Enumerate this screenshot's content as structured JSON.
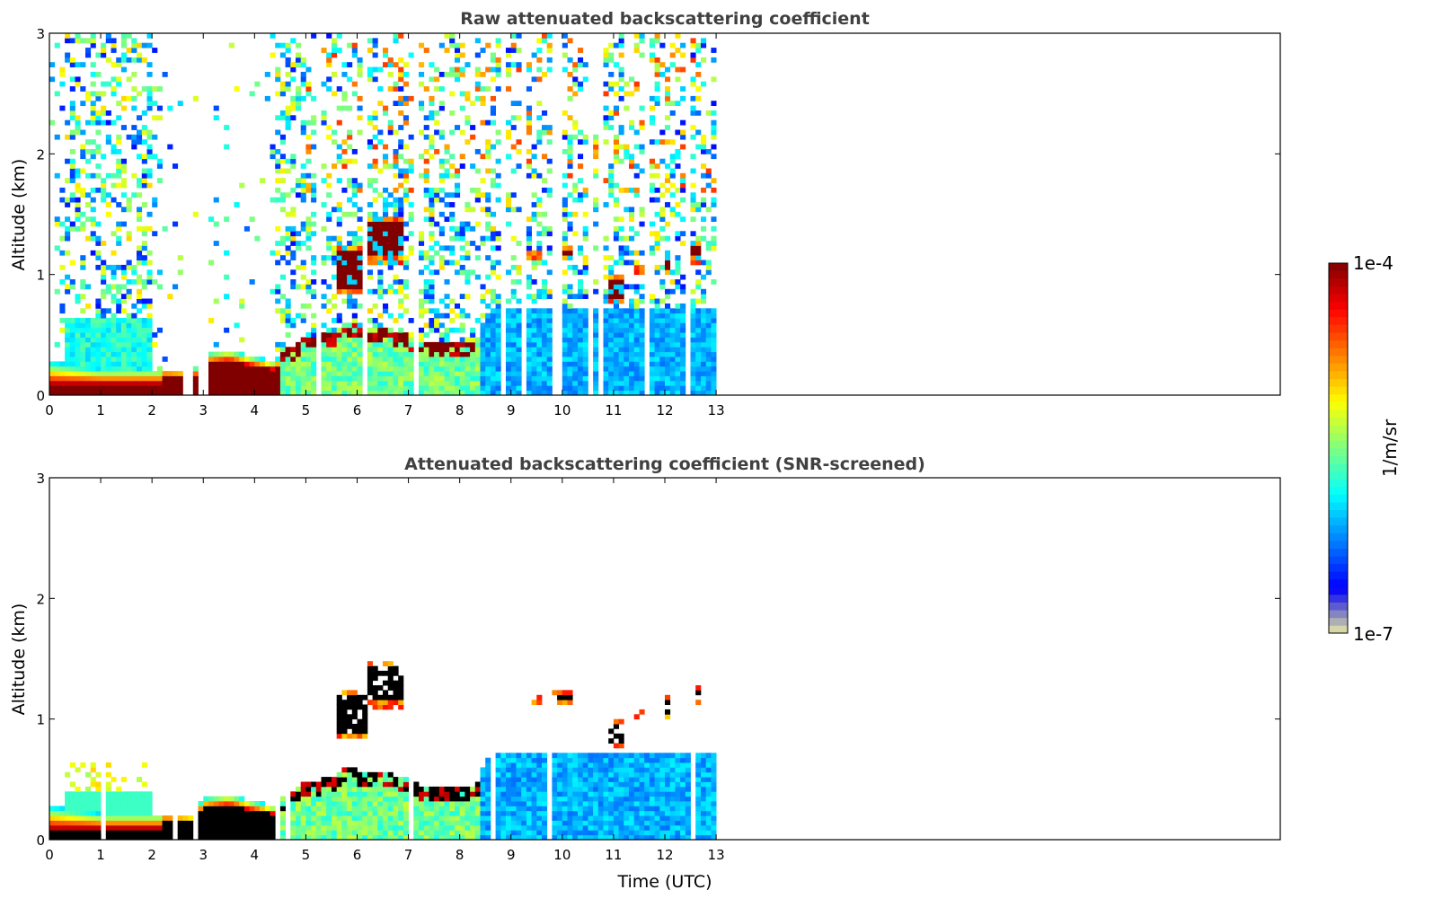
{
  "chart_data": {
    "type": "heatmap",
    "panels": [
      {
        "id": "raw",
        "title": "Raw attenuated backscattering coefficient",
        "ylabel": "Altitude (km)",
        "xlabel": "",
        "screened": false
      },
      {
        "id": "screened",
        "title": "Attenuated backscattering coefficient (SNR-screened)",
        "ylabel": "Altitude (km)",
        "xlabel": "Time (UTC)",
        "screened": true
      }
    ],
    "xlim": [
      0,
      24
    ],
    "ylim": [
      0,
      3
    ],
    "xticks": [
      0,
      1,
      2,
      3,
      4,
      5,
      6,
      7,
      8,
      9,
      10,
      11,
      12,
      13
    ],
    "yticks": [
      0,
      1,
      2,
      3
    ],
    "data_end_time": 13,
    "colorbar": {
      "label": "1/m/sr",
      "min_label": "1e-7",
      "max_label": "1e-4",
      "log10_range": [
        -7,
        -4
      ],
      "colormap": "jet",
      "over_color_screened": "#000000"
    },
    "boundary_layer_top_km": {
      "time": [
        0,
        0.5,
        1,
        1.5,
        2,
        2.3,
        2.8,
        3.0,
        3.5,
        4.0,
        4.4,
        4.6,
        5.0,
        5.5,
        5.8,
        6.2,
        6.6,
        7.0,
        7.4,
        7.8,
        8.3,
        8.6,
        9,
        10,
        11,
        12,
        13
      ],
      "top": [
        0.28,
        0.25,
        0.22,
        0.22,
        0.22,
        0.22,
        0.2,
        0.35,
        0.38,
        0.32,
        0.28,
        0.38,
        0.48,
        0.52,
        0.6,
        0.55,
        0.55,
        0.5,
        0.42,
        0.45,
        0.45,
        0.72,
        0.72,
        0.7,
        0.72,
        0.73,
        0.73
      ]
    },
    "residual_layer": {
      "start": 0.35,
      "end": 2.0,
      "top_km": 0.66
    },
    "cloud_segments": [
      {
        "start": 5.6,
        "end": 6.2,
        "base_km": 0.85,
        "top_km": 1.25
      },
      {
        "start": 6.2,
        "end": 6.9,
        "base_km": 1.1,
        "top_km": 1.5
      },
      {
        "start": 9.3,
        "end": 9.6,
        "base_km": 1.12,
        "top_km": 1.22
      },
      {
        "start": 9.8,
        "end": 10.2,
        "base_km": 1.12,
        "top_km": 1.25
      },
      {
        "start": 10.85,
        "end": 11.2,
        "base_km": 0.75,
        "top_km": 1.0
      },
      {
        "start": 11.4,
        "end": 11.6,
        "base_km": 1.0,
        "top_km": 1.1
      },
      {
        "start": 12.0,
        "end": 12.1,
        "base_km": 1.0,
        "top_km": 1.2
      },
      {
        "start": 12.5,
        "end": 12.7,
        "base_km": 1.1,
        "top_km": 1.3
      }
    ],
    "noise_fraction_raw": {
      "time": [
        0,
        0.3,
        2.0,
        2.2,
        4.3,
        4.5,
        13
      ],
      "fraction": [
        0.05,
        0.35,
        0.35,
        0.04,
        0.04,
        0.45,
        0.45
      ]
    }
  }
}
